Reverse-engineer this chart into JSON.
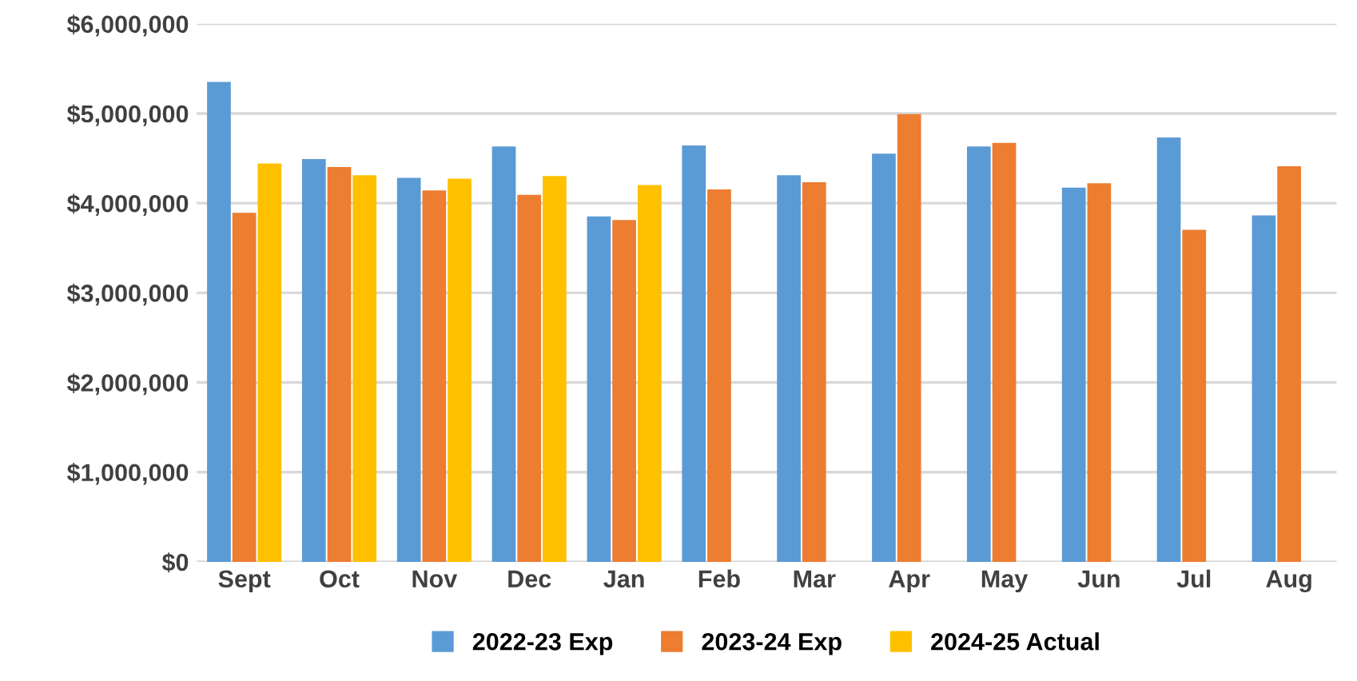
{
  "chart_data": {
    "type": "bar",
    "categories": [
      "Sept",
      "Oct",
      "Nov",
      "Dec",
      "Jan",
      "Feb",
      "Mar",
      "Apr",
      "May",
      "Jun",
      "Jul",
      "Aug"
    ],
    "series": [
      {
        "name": "2022-23 Exp",
        "color": "#5b9bd5",
        "values": [
          5340000,
          4480000,
          4270000,
          4620000,
          3840000,
          4630000,
          4300000,
          4540000,
          4620000,
          4160000,
          4720000,
          3850000
        ]
      },
      {
        "name": "2023-24 Exp",
        "color": "#ed7d31",
        "values": [
          3880000,
          4390000,
          4130000,
          4080000,
          3800000,
          4140000,
          4220000,
          4980000,
          4660000,
          4210000,
          3690000,
          4400000
        ]
      },
      {
        "name": "2024-25 Actual",
        "color": "#ffc000",
        "values": [
          4430000,
          4300000,
          4260000,
          4290000,
          4190000,
          null,
          null,
          null,
          null,
          null,
          null,
          null
        ]
      }
    ],
    "ylim": [
      0,
      6000000
    ],
    "yticks": [
      {
        "value": 0,
        "label": "$0"
      },
      {
        "value": 1000000,
        "label": "$1,000,000"
      },
      {
        "value": 2000000,
        "label": "$2,000,000"
      },
      {
        "value": 3000000,
        "label": "$3,000,000"
      },
      {
        "value": 4000000,
        "label": "$4,000,000"
      },
      {
        "value": 5000000,
        "label": "$5,000,000"
      },
      {
        "value": 6000000,
        "label": "$6,000,000"
      }
    ],
    "grid": "y",
    "legend": "bottom"
  }
}
